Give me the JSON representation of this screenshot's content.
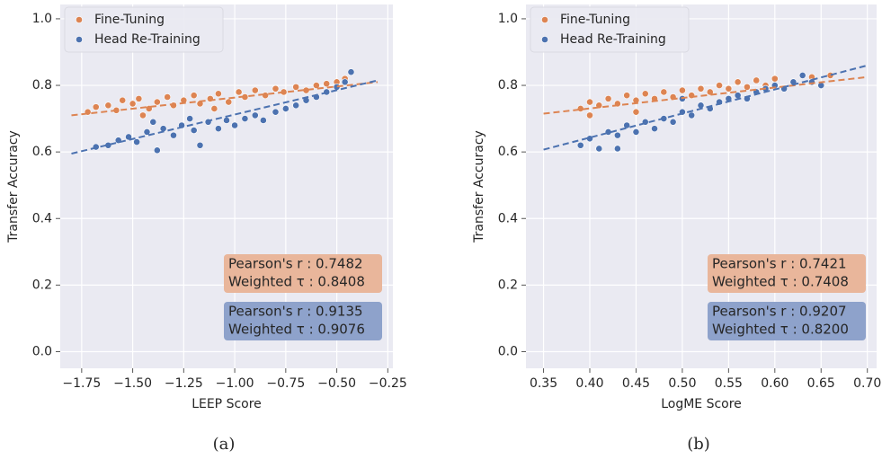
{
  "chart_data": [
    {
      "type": "scatter",
      "xlabel": "LEEP Score",
      "ylabel": "Transfer Accuracy",
      "caption": "(a)",
      "xlim": [
        -1.855,
        -0.225
      ],
      "ylim": [
        -0.05,
        1.043
      ],
      "xticks": [
        {
          "value": -1.75,
          "label": "−1.75"
        },
        {
          "value": -1.5,
          "label": "−1.50"
        },
        {
          "value": -1.25,
          "label": "−1.25"
        },
        {
          "value": -1,
          "label": "−1.00"
        },
        {
          "value": -0.75,
          "label": "−0.75"
        },
        {
          "value": -0.5,
          "label": "−0.50"
        },
        {
          "value": -0.25,
          "label": "−0.25"
        }
      ],
      "yticks": [
        {
          "value": 0,
          "label": "0.0"
        },
        0.2,
        0.4,
        0.6,
        0.8,
        {
          "value": 1,
          "label": "1.0"
        }
      ],
      "grid": true,
      "legend": "upper left",
      "series": [
        {
          "name": "Fine-Tuning",
          "color": "#dd8452",
          "x": [
            -1.72,
            -1.68,
            -1.62,
            -1.58,
            -1.55,
            -1.5,
            -1.47,
            -1.42,
            -1.38,
            -1.33,
            -1.3,
            -1.25,
            -1.2,
            -1.17,
            -1.12,
            -1.08,
            -1.03,
            -0.98,
            -0.95,
            -0.9,
            -0.85,
            -0.8,
            -0.76,
            -0.7,
            -0.65,
            -0.6,
            -0.55,
            -0.5,
            -0.46,
            -1.45,
            -1.1
          ],
          "y": [
            0.72,
            0.735,
            0.74,
            0.725,
            0.755,
            0.745,
            0.76,
            0.73,
            0.75,
            0.765,
            0.74,
            0.755,
            0.77,
            0.745,
            0.76,
            0.775,
            0.75,
            0.78,
            0.765,
            0.785,
            0.77,
            0.79,
            0.78,
            0.795,
            0.785,
            0.8,
            0.805,
            0.81,
            0.82,
            0.71,
            0.73
          ],
          "fit": {
            "x": [
              -1.8,
              -0.3
            ],
            "y": [
              0.71,
              0.81
            ]
          }
        },
        {
          "name": "Head Re-Training",
          "color": "#4c72b0",
          "x": [
            -1.68,
            -1.62,
            -1.57,
            -1.52,
            -1.48,
            -1.43,
            -1.38,
            -1.35,
            -1.3,
            -1.26,
            -1.2,
            -1.17,
            -1.13,
            -1.08,
            -1.04,
            -1.0,
            -0.95,
            -0.9,
            -0.86,
            -0.8,
            -0.75,
            -0.7,
            -0.65,
            -0.6,
            -0.55,
            -0.5,
            -0.46,
            -0.43,
            -1.4,
            -1.22
          ],
          "y": [
            0.615,
            0.62,
            0.635,
            0.645,
            0.63,
            0.66,
            0.605,
            0.67,
            0.65,
            0.68,
            0.665,
            0.62,
            0.69,
            0.67,
            0.695,
            0.68,
            0.7,
            0.71,
            0.695,
            0.72,
            0.73,
            0.74,
            0.755,
            0.765,
            0.78,
            0.795,
            0.81,
            0.84,
            0.69,
            0.7
          ],
          "fit": {
            "x": [
              -1.8,
              -0.3
            ],
            "y": [
              0.595,
              0.815
            ]
          }
        }
      ],
      "annotations": [
        {
          "color": "#e9b69b",
          "lines": [
            "Pearson's r : 0.7482",
            "Weighted τ : 0.8408"
          ]
        },
        {
          "color": "#8ea2cb",
          "lines": [
            "Pearson's r : 0.9135",
            "Weighted τ : 0.9076"
          ]
        }
      ]
    },
    {
      "type": "scatter",
      "xlabel": "LogME Score",
      "ylabel": "Transfer Accuracy",
      "caption": "(b)",
      "xlim": [
        0.331,
        0.71
      ],
      "ylim": [
        -0.05,
        1.043
      ],
      "xticks": [
        0.35,
        {
          "value": 0.4,
          "label": "0.40"
        },
        0.45,
        {
          "value": 0.5,
          "label": "0.50"
        },
        0.55,
        {
          "value": 0.6,
          "label": "0.60"
        },
        0.65,
        {
          "value": 0.7,
          "label": "0.70"
        }
      ],
      "yticks": [
        {
          "value": 0,
          "label": "0.0"
        },
        0.2,
        0.4,
        0.6,
        0.8,
        {
          "value": 1,
          "label": "1.0"
        }
      ],
      "grid": true,
      "legend": "upper left",
      "series": [
        {
          "name": "Fine-Tuning",
          "color": "#dd8452",
          "x": [
            0.39,
            0.4,
            0.41,
            0.42,
            0.43,
            0.44,
            0.45,
            0.46,
            0.47,
            0.48,
            0.49,
            0.5,
            0.51,
            0.52,
            0.53,
            0.54,
            0.55,
            0.56,
            0.57,
            0.58,
            0.59,
            0.6,
            0.62,
            0.64,
            0.66,
            0.4,
            0.45
          ],
          "y": [
            0.73,
            0.75,
            0.74,
            0.76,
            0.745,
            0.77,
            0.755,
            0.775,
            0.76,
            0.78,
            0.765,
            0.785,
            0.77,
            0.79,
            0.78,
            0.8,
            0.79,
            0.81,
            0.795,
            0.815,
            0.8,
            0.82,
            0.81,
            0.825,
            0.83,
            0.71,
            0.72
          ],
          "fit": {
            "x": [
              0.35,
              0.7
            ],
            "y": [
              0.715,
              0.825
            ]
          }
        },
        {
          "name": "Head Re-Training",
          "color": "#4c72b0",
          "x": [
            0.39,
            0.4,
            0.41,
            0.42,
            0.43,
            0.44,
            0.45,
            0.46,
            0.47,
            0.48,
            0.49,
            0.5,
            0.51,
            0.52,
            0.53,
            0.54,
            0.55,
            0.56,
            0.57,
            0.58,
            0.59,
            0.6,
            0.61,
            0.62,
            0.63,
            0.64,
            0.65,
            0.43,
            0.5
          ],
          "y": [
            0.62,
            0.64,
            0.61,
            0.66,
            0.65,
            0.68,
            0.66,
            0.69,
            0.67,
            0.7,
            0.69,
            0.72,
            0.71,
            0.74,
            0.73,
            0.75,
            0.76,
            0.77,
            0.76,
            0.78,
            0.79,
            0.8,
            0.79,
            0.81,
            0.83,
            0.81,
            0.8,
            0.61,
            0.76
          ],
          "fit": {
            "x": [
              0.35,
              0.7
            ],
            "y": [
              0.607,
              0.86
            ]
          }
        }
      ],
      "annotations": [
        {
          "color": "#e9b69b",
          "lines": [
            "Pearson's r : 0.7421",
            "Weighted τ : 0.7408"
          ]
        },
        {
          "color": "#8ea2cb",
          "lines": [
            "Pearson's r : 0.9207",
            "Weighted τ : 0.8200"
          ]
        }
      ]
    }
  ]
}
